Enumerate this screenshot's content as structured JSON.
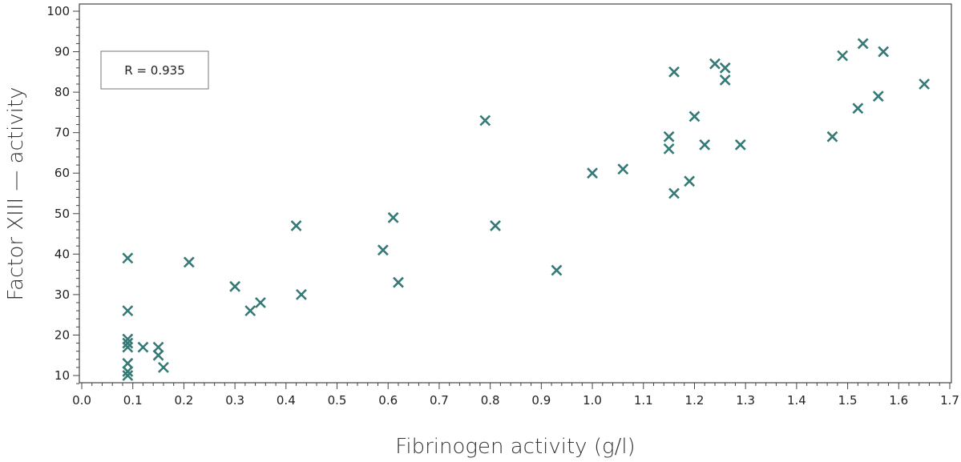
{
  "chart_data": {
    "type": "scatter",
    "xlabel": "Fibrinogen activity (g/l)",
    "ylabel": "Factor XIII — activity",
    "xlim": [
      0.0,
      1.7
    ],
    "ylim": [
      8,
      100
    ],
    "x_ticks": [
      "0.0",
      "0.1",
      "0.2",
      "0.3",
      "0.4",
      "0.5",
      "0.6",
      "0.7",
      "0.8",
      "0.9",
      "1.0",
      "1.1",
      "1.2",
      "1.3",
      "1.4",
      "1.5",
      "1.6",
      "1.7"
    ],
    "y_ticks": [
      "10",
      "20",
      "30",
      "40",
      "50",
      "60",
      "70",
      "80",
      "90",
      "100"
    ],
    "annotation": "R = 0.935",
    "annotation_position": "top-left",
    "marker": "x",
    "marker_color": "#357a76",
    "grid": false,
    "points": [
      {
        "x": 0.09,
        "y": 39
      },
      {
        "x": 0.09,
        "y": 26
      },
      {
        "x": 0.09,
        "y": 19
      },
      {
        "x": 0.09,
        "y": 18
      },
      {
        "x": 0.09,
        "y": 17
      },
      {
        "x": 0.09,
        "y": 13
      },
      {
        "x": 0.09,
        "y": 11
      },
      {
        "x": 0.09,
        "y": 10
      },
      {
        "x": 0.12,
        "y": 17
      },
      {
        "x": 0.15,
        "y": 17
      },
      {
        "x": 0.15,
        "y": 15
      },
      {
        "x": 0.16,
        "y": 12
      },
      {
        "x": 0.21,
        "y": 38
      },
      {
        "x": 0.3,
        "y": 32
      },
      {
        "x": 0.33,
        "y": 26
      },
      {
        "x": 0.35,
        "y": 28
      },
      {
        "x": 0.42,
        "y": 47
      },
      {
        "x": 0.43,
        "y": 30
      },
      {
        "x": 0.59,
        "y": 41
      },
      {
        "x": 0.61,
        "y": 49
      },
      {
        "x": 0.62,
        "y": 33
      },
      {
        "x": 0.79,
        "y": 73
      },
      {
        "x": 0.81,
        "y": 47
      },
      {
        "x": 0.93,
        "y": 36
      },
      {
        "x": 1.0,
        "y": 60
      },
      {
        "x": 1.06,
        "y": 61
      },
      {
        "x": 1.15,
        "y": 69
      },
      {
        "x": 1.15,
        "y": 66
      },
      {
        "x": 1.16,
        "y": 85
      },
      {
        "x": 1.16,
        "y": 55
      },
      {
        "x": 1.19,
        "y": 58
      },
      {
        "x": 1.2,
        "y": 74
      },
      {
        "x": 1.22,
        "y": 67
      },
      {
        "x": 1.24,
        "y": 87
      },
      {
        "x": 1.26,
        "y": 86
      },
      {
        "x": 1.26,
        "y": 83
      },
      {
        "x": 1.29,
        "y": 67
      },
      {
        "x": 1.47,
        "y": 69
      },
      {
        "x": 1.49,
        "y": 89
      },
      {
        "x": 1.52,
        "y": 76
      },
      {
        "x": 1.53,
        "y": 92
      },
      {
        "x": 1.56,
        "y": 79
      },
      {
        "x": 1.57,
        "y": 90
      },
      {
        "x": 1.65,
        "y": 82
      }
    ]
  }
}
